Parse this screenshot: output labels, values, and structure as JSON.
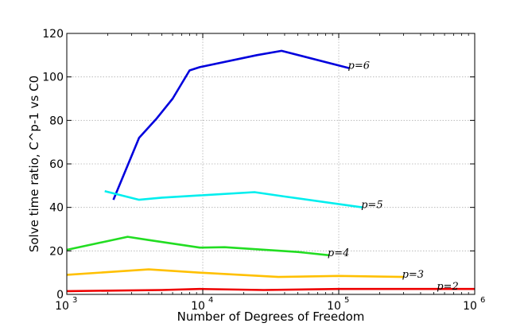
{
  "chart_data": {
    "type": "line",
    "xlabel": "Number of Degrees of Freedom",
    "ylabel": "Solve time ratio, C^p-1 vs C0",
    "xscale": "log",
    "xlim": [
      1000,
      1000000
    ],
    "ylim": [
      0,
      120
    ],
    "grid": true,
    "x_ticks": [
      1000,
      10000,
      100000,
      1000000
    ],
    "x_tick_labels": [
      {
        "base": "10",
        "exp": "3"
      },
      {
        "base": "10",
        "exp": "4"
      },
      {
        "base": "10",
        "exp": "5"
      },
      {
        "base": "10",
        "exp": "6"
      }
    ],
    "y_ticks": [
      0,
      20,
      40,
      60,
      80,
      100,
      120
    ],
    "series": [
      {
        "name": "p=6",
        "color": "#0000dd",
        "x": [
          2200,
          3400,
          4600,
          6000,
          8000,
          9500,
          25000,
          38000,
          120000
        ],
        "y": [
          43.5,
          72,
          81,
          90,
          103,
          104.5,
          110,
          112,
          104
        ]
      },
      {
        "name": "p=5",
        "color": "#00eeee",
        "x": [
          1900,
          3400,
          5000,
          9500,
          24000,
          40000,
          150000
        ],
        "y": [
          47.5,
          43.5,
          44.5,
          45.5,
          47,
          45,
          40
        ]
      },
      {
        "name": "p=4",
        "color": "#22dd22",
        "x": [
          1000,
          2000,
          2800,
          4000,
          9500,
          14500,
          50000,
          85000
        ],
        "y": [
          20.5,
          24.5,
          26.5,
          25,
          21.5,
          21.7,
          19.5,
          18
        ]
      },
      {
        "name": "p=3",
        "color": "#ffc000",
        "x": [
          1000,
          4000,
          9500,
          36000,
          100000,
          300000
        ],
        "y": [
          9,
          11.5,
          10,
          8,
          8.5,
          8
        ]
      },
      {
        "name": "p=2",
        "color": "#ee0000",
        "x": [
          1000,
          5000,
          9500,
          28000,
          100000,
          540000,
          1000000
        ],
        "y": [
          1.5,
          2,
          2.5,
          2,
          2.5,
          2.5,
          2.5
        ]
      }
    ],
    "annotations": [
      {
        "text": "p=6",
        "series": "p=6",
        "x": 120000,
        "y": 104
      },
      {
        "text": "p=5",
        "series": "p=5",
        "x": 150000,
        "y": 40
      },
      {
        "text": "p=4",
        "series": "p=4",
        "x": 85000,
        "y": 18
      },
      {
        "text": "p=3",
        "series": "p=3",
        "x": 300000,
        "y": 8
      },
      {
        "text": "p=2",
        "series": "p=2",
        "x": 540000,
        "y": 2.5
      }
    ]
  }
}
